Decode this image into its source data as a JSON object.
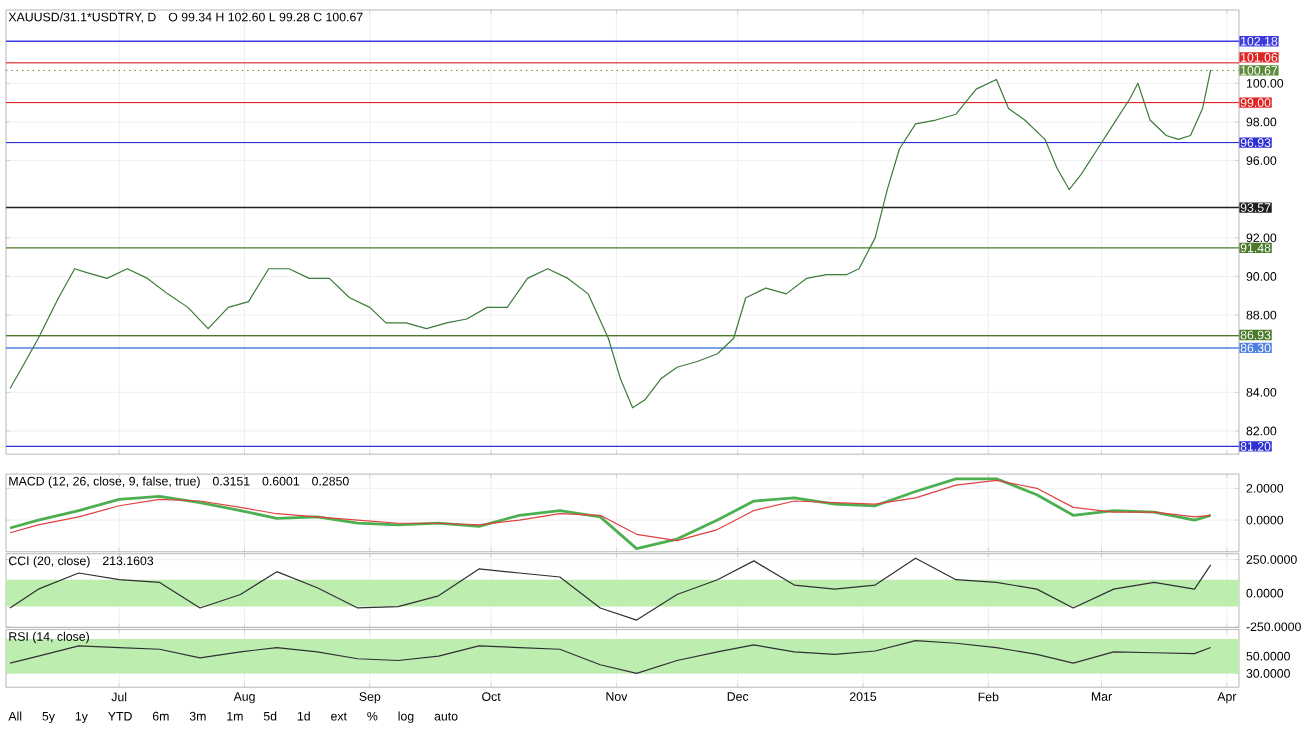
{
  "chart_data": [
    {
      "type": "line",
      "title": "XAUUSD/31.1*USDTRY, D",
      "annotations": [
        "O 99.34 H 102.60 L 99.28 C 100.67"
      ],
      "color": "#3a7a3a",
      "grid": true,
      "tick_labels": "y",
      "x": [
        "2014-06-04",
        "2014-06-07",
        "2014-06-11",
        "2014-06-16",
        "2014-06-20",
        "2014-06-23",
        "2014-06-28",
        "2014-07-03",
        "2014-07-08",
        "2014-07-13",
        "2014-07-18",
        "2014-07-23",
        "2014-07-28",
        "2014-08-02",
        "2014-08-07",
        "2014-08-12",
        "2014-08-17",
        "2014-08-22",
        "2014-08-27",
        "2014-09-01",
        "2014-09-05",
        "2014-09-10",
        "2014-09-15",
        "2014-09-20",
        "2014-09-25",
        "2014-09-30",
        "2014-10-05",
        "2014-10-10",
        "2014-10-15",
        "2014-10-20",
        "2014-10-25",
        "2014-10-30",
        "2014-11-02",
        "2014-11-05",
        "2014-11-08",
        "2014-11-12",
        "2014-11-16",
        "2014-11-21",
        "2014-11-26",
        "2014-11-30",
        "2014-12-03",
        "2014-12-08",
        "2014-12-13",
        "2014-12-18",
        "2014-12-23",
        "2014-12-28",
        "2014-12-31",
        "2015-01-04",
        "2015-01-07",
        "2015-01-10",
        "2015-01-14",
        "2015-01-19",
        "2015-01-24",
        "2015-01-29",
        "2015-02-03",
        "2015-02-06",
        "2015-02-10",
        "2015-02-15",
        "2015-02-18",
        "2015-02-21",
        "2015-02-24",
        "2015-02-28",
        "2015-03-04",
        "2015-03-08",
        "2015-03-10",
        "2015-03-13",
        "2015-03-17",
        "2015-03-20",
        "2015-03-23",
        "2015-03-26",
        "2015-03-28"
      ],
      "values": [
        84.2,
        85.3,
        86.8,
        88.9,
        90.4,
        90.2,
        89.9,
        90.4,
        89.9,
        89.1,
        88.4,
        87.3,
        88.4,
        88.7,
        90.4,
        90.4,
        89.9,
        89.9,
        88.9,
        88.4,
        87.6,
        87.6,
        87.3,
        87.6,
        87.8,
        88.4,
        88.4,
        89.9,
        90.4,
        89.9,
        89.1,
        86.8,
        84.7,
        83.2,
        83.6,
        84.7,
        85.3,
        85.6,
        86.0,
        86.8,
        88.9,
        89.4,
        89.1,
        89.9,
        90.1,
        90.1,
        90.4,
        92.0,
        94.5,
        96.6,
        97.9,
        98.1,
        98.4,
        99.7,
        100.2,
        98.7,
        98.1,
        97.1,
        95.6,
        94.5,
        95.3,
        96.6,
        97.9,
        99.2,
        100.0,
        98.1,
        97.3,
        97.1,
        97.3,
        98.7,
        100.7
      ],
      "xlim": [
        "2014-06-03",
        "2015-04-04"
      ],
      "ylim": [
        80.8,
        103.8
      ],
      "xticks": [
        {
          "value": "2014-07-01",
          "label": null
        },
        {
          "value": "2014-08-01",
          "label": null
        },
        {
          "value": "2014-09-01",
          "label": null
        },
        {
          "value": "2014-10-01",
          "label": null
        },
        {
          "value": "2014-11-01",
          "label": null
        },
        {
          "value": "2014-12-01",
          "label": null
        },
        {
          "value": "2015-01-01",
          "label": null
        },
        {
          "value": "2015-02-01",
          "label": null
        },
        {
          "value": "2015-03-01",
          "label": null
        },
        {
          "value": "2015-04-01",
          "label": null
        }
      ],
      "yticks": [
        {
          "value": 82,
          "label": "82.00"
        },
        {
          "value": 84,
          "label": "84.00"
        },
        {
          "value": 88,
          "label": "88.00"
        },
        {
          "value": 90,
          "label": "90.00"
        },
        {
          "value": 92,
          "label": "92.00"
        },
        {
          "value": 96,
          "label": "96.00"
        },
        {
          "value": 98,
          "label": "98.00"
        },
        {
          "value": 100,
          "label": "100.00"
        }
      ],
      "ref_lines": [
        {
          "axis": "y",
          "value": 102.18,
          "label": "102.18",
          "color": "#3b3bdf"
        },
        {
          "axis": "y",
          "value": 101.06,
          "label": "101.06",
          "color": "#e02424"
        },
        {
          "axis": "y",
          "value": 100.67,
          "label": "100.67",
          "color": "#5a8a3a",
          "line_style": "dotted"
        },
        {
          "axis": "y",
          "value": 99.0,
          "label": "99.00",
          "color": "#e02424"
        },
        {
          "axis": "y",
          "value": 96.93,
          "label": "96.93",
          "color": "#2f2fd6"
        },
        {
          "axis": "y",
          "value": 93.57,
          "label": "93.57",
          "color": "#202020"
        },
        {
          "axis": "y",
          "value": 91.48,
          "label": "91.48",
          "color": "#4a7a2a"
        },
        {
          "axis": "y",
          "value": 86.93,
          "label": "86.93",
          "color": "#4a7a2a"
        },
        {
          "axis": "y",
          "value": 86.3,
          "label": "86.30",
          "color": "#4f7fe0"
        },
        {
          "axis": "y",
          "value": 81.2,
          "label": "81.20",
          "color": "#2f2fd6"
        }
      ]
    },
    {
      "type": "line",
      "title": "MACD (12, 26, close, 9, false, true)",
      "annotations": [
        "0.3151",
        "0.6001",
        "0.2850"
      ],
      "grid": true,
      "tick_labels": "y",
      "x": [
        "2014-06-04",
        "2014-06-11",
        "2014-06-21",
        "2014-07-01",
        "2014-07-11",
        "2014-07-21",
        "2014-07-31",
        "2014-08-09",
        "2014-08-19",
        "2014-08-29",
        "2014-09-08",
        "2014-09-18",
        "2014-09-28",
        "2014-10-08",
        "2014-10-18",
        "2014-10-28",
        "2014-11-06",
        "2014-11-16",
        "2014-11-26",
        "2014-12-05",
        "2014-12-15",
        "2014-12-25",
        "2015-01-04",
        "2015-01-14",
        "2015-01-24",
        "2015-02-03",
        "2015-02-13",
        "2015-02-22",
        "2015-03-04",
        "2015-03-14",
        "2015-03-24",
        "2015-03-28"
      ],
      "series": [
        {
          "color": "#4caf50",
          "values": [
            -0.5,
            0.0,
            0.6,
            1.3,
            1.5,
            1.1,
            0.6,
            0.1,
            0.2,
            -0.2,
            -0.3,
            -0.2,
            -0.4,
            0.3,
            0.6,
            0.2,
            -1.8,
            -1.2,
            0.0,
            1.2,
            1.4,
            1.0,
            0.9,
            1.8,
            2.6,
            2.6,
            1.6,
            0.3,
            0.6,
            0.5,
            0.0,
            0.3
          ]
        },
        {
          "color": "#e04040",
          "values": [
            -0.8,
            -0.3,
            0.2,
            0.9,
            1.3,
            1.2,
            0.8,
            0.4,
            0.2,
            0.0,
            -0.2,
            -0.2,
            -0.3,
            0.0,
            0.4,
            0.3,
            -0.9,
            -1.3,
            -0.6,
            0.6,
            1.2,
            1.1,
            1.0,
            1.4,
            2.2,
            2.5,
            2.0,
            0.8,
            0.5,
            0.5,
            0.2,
            0.3
          ]
        }
      ],
      "xlim": [
        "2014-06-03",
        "2015-04-04"
      ],
      "ylim": [
        -2.0,
        2.9
      ],
      "xticks": [
        {
          "value": "2014-07-01",
          "label": null
        },
        {
          "value": "2014-08-01",
          "label": null
        },
        {
          "value": "2014-09-01",
          "label": null
        },
        {
          "value": "2014-10-01",
          "label": null
        },
        {
          "value": "2014-11-01",
          "label": null
        },
        {
          "value": "2014-12-01",
          "label": null
        },
        {
          "value": "2015-01-01",
          "label": null
        },
        {
          "value": "2015-02-01",
          "label": null
        },
        {
          "value": "2015-03-01",
          "label": null
        },
        {
          "value": "2015-04-01",
          "label": null
        }
      ],
      "yticks": [
        {
          "value": 0,
          "label": "0.0000"
        },
        {
          "value": 2,
          "label": "2.0000"
        }
      ]
    },
    {
      "type": "line",
      "title": "CCI (20, close)",
      "annotations": [
        "213.1603"
      ],
      "color": "#303030",
      "grid": true,
      "tick_labels": "y",
      "x": [
        "2014-06-04",
        "2014-06-11",
        "2014-06-21",
        "2014-07-01",
        "2014-07-11",
        "2014-07-21",
        "2014-07-31",
        "2014-08-09",
        "2014-08-19",
        "2014-08-29",
        "2014-09-08",
        "2014-09-18",
        "2014-09-28",
        "2014-10-08",
        "2014-10-18",
        "2014-10-28",
        "2014-11-06",
        "2014-11-16",
        "2014-11-26",
        "2014-12-05",
        "2014-12-15",
        "2014-12-25",
        "2015-01-04",
        "2015-01-14",
        "2015-01-24",
        "2015-02-03",
        "2015-02-13",
        "2015-02-22",
        "2015-03-04",
        "2015-03-14",
        "2015-03-24",
        "2015-03-28"
      ],
      "values": [
        -110,
        30,
        150,
        100,
        80,
        -110,
        -10,
        160,
        40,
        -110,
        -100,
        -20,
        180,
        150,
        120,
        -110,
        -200,
        -10,
        100,
        240,
        60,
        30,
        60,
        260,
        100,
        80,
        30,
        -110,
        30,
        80,
        30,
        210
      ],
      "bands": [
        {
          "axis": "y",
          "from": -100,
          "to": 100,
          "color": "#bdeeb0"
        }
      ],
      "xlim": [
        "2014-06-03",
        "2015-04-04"
      ],
      "ylim": [
        -255,
        293
      ],
      "xticks": [
        {
          "value": "2014-07-01",
          "label": null
        },
        {
          "value": "2014-08-01",
          "label": null
        },
        {
          "value": "2014-09-01",
          "label": null
        },
        {
          "value": "2014-10-01",
          "label": null
        },
        {
          "value": "2014-11-01",
          "label": null
        },
        {
          "value": "2014-12-01",
          "label": null
        },
        {
          "value": "2015-01-01",
          "label": null
        },
        {
          "value": "2015-02-01",
          "label": null
        },
        {
          "value": "2015-03-01",
          "label": null
        },
        {
          "value": "2015-04-01",
          "label": null
        }
      ],
      "yticks": [
        {
          "value": -250,
          "label": "-250.0000"
        },
        {
          "value": 0,
          "label": "0.0000"
        },
        {
          "value": 250,
          "label": "250.0000"
        }
      ]
    },
    {
      "type": "line",
      "title": "RSI (14, close)",
      "annotations": [
        "All",
        "5y",
        "1y",
        "YTD",
        "6m",
        "3m",
        "1m",
        "5d",
        "1d",
        "ext",
        "%",
        "log",
        "auto"
      ],
      "color": "#303030",
      "grid": true,
      "x": [
        "2014-06-04",
        "2014-06-11",
        "2014-06-21",
        "2014-07-01",
        "2014-07-11",
        "2014-07-21",
        "2014-07-31",
        "2014-08-09",
        "2014-08-19",
        "2014-08-29",
        "2014-09-08",
        "2014-09-18",
        "2014-09-28",
        "2014-10-08",
        "2014-10-18",
        "2014-10-28",
        "2014-11-06",
        "2014-11-16",
        "2014-11-26",
        "2014-12-05",
        "2014-12-15",
        "2014-12-25",
        "2015-01-04",
        "2015-01-14",
        "2015-01-24",
        "2015-02-03",
        "2015-02-13",
        "2015-02-22",
        "2015-03-04",
        "2015-03-14",
        "2015-03-24",
        "2015-03-28"
      ],
      "values": [
        42,
        50,
        62,
        60,
        58,
        48,
        55,
        60,
        55,
        47,
        45,
        50,
        62,
        60,
        58,
        40,
        30,
        45,
        55,
        63,
        55,
        52,
        56,
        68,
        65,
        60,
        52,
        42,
        55,
        54,
        53,
        60
      ],
      "bands": [
        {
          "axis": "y",
          "from": 30,
          "to": 70,
          "color": "#bdeeb0"
        }
      ],
      "xlim": [
        "2014-06-03",
        "2015-04-04"
      ],
      "ylim": [
        14,
        81
      ],
      "xticks": [
        {
          "value": "2014-07-01",
          "label": "Jul"
        },
        {
          "value": "2014-08-01",
          "label": "Aug"
        },
        {
          "value": "2014-09-01",
          "label": "Sep"
        },
        {
          "value": "2014-10-01",
          "label": "Oct"
        },
        {
          "value": "2014-11-01",
          "label": "Nov"
        },
        {
          "value": "2014-12-01",
          "label": "Dec"
        },
        {
          "value": "2015-01-01",
          "label": "2015"
        },
        {
          "value": "2015-02-01",
          "label": "Feb"
        },
        {
          "value": "2015-03-01",
          "label": "Mar"
        },
        {
          "value": "2015-04-01",
          "label": "Apr"
        }
      ],
      "yticks": [
        {
          "value": 30,
          "label": "30.0000"
        },
        {
          "value": 50,
          "label": "50.0000"
        }
      ]
    }
  ]
}
